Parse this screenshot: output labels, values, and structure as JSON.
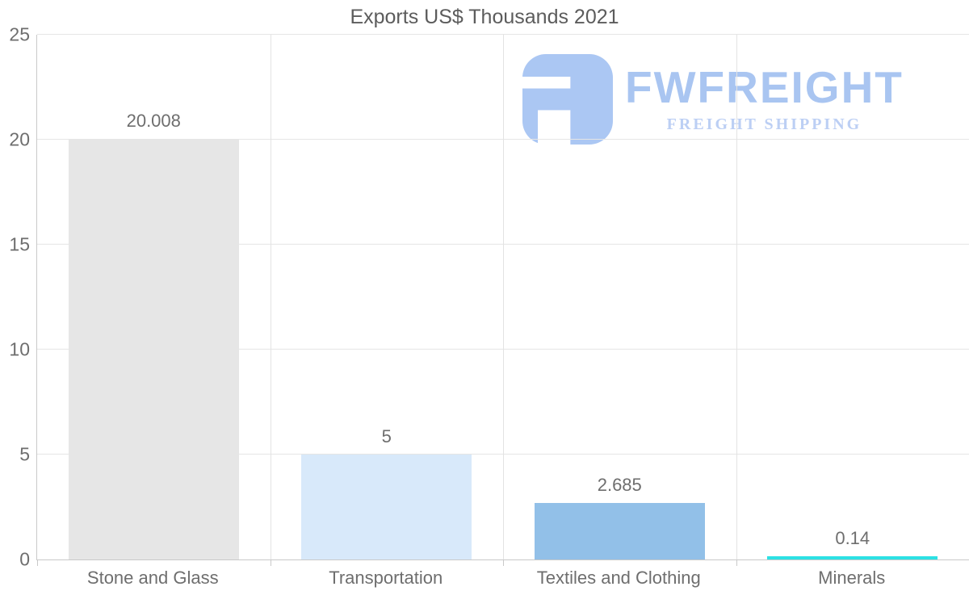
{
  "watermark": {
    "brand": "FWFREIGHT",
    "tagline": "FREIGHT SHIPPING",
    "brand_color": "#a9c5f1",
    "tagline_color": "#bccff4",
    "icon_color": "#abc7f3"
  },
  "chart_data": {
    "type": "bar",
    "title": "Exports US$ Thousands 2021",
    "categories": [
      "Stone and Glass",
      "Transportation",
      "Textiles and Clothing",
      "Minerals"
    ],
    "values": [
      20.008,
      5,
      2.685,
      0.14
    ],
    "value_labels": [
      "20.008",
      "5",
      "2.685",
      "0.14"
    ],
    "bar_colors": [
      "#e6e6e6",
      "#d8e9fa",
      "#92c0e8",
      "#2ce1e4"
    ],
    "xlabel": "",
    "ylabel": "",
    "ylim": [
      0,
      25
    ],
    "yticks": [
      0,
      5,
      10,
      15,
      20,
      25
    ],
    "grid": true,
    "legend": false,
    "axis_color": "#c9c9c9",
    "gridline_color": "#e5e5e5",
    "label_color": "#6e6e6e"
  }
}
